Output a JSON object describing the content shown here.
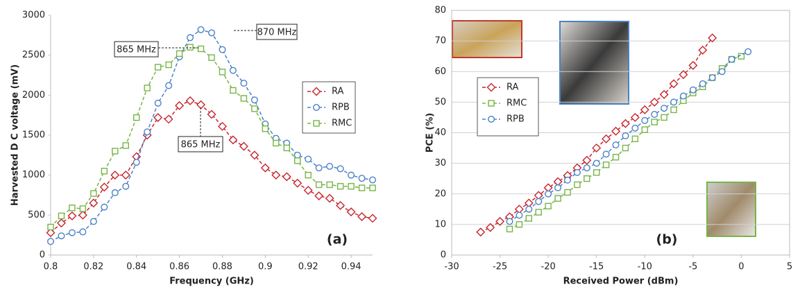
{
  "chart_data": [
    {
      "type": "line",
      "x_label": "Frequency (GHz)",
      "y_label": "Harvested D C voltage (mV)",
      "x": [
        0.8,
        0.805,
        0.81,
        0.815,
        0.82,
        0.825,
        0.83,
        0.835,
        0.84,
        0.845,
        0.85,
        0.855,
        0.86,
        0.865,
        0.87,
        0.875,
        0.88,
        0.885,
        0.89,
        0.895,
        0.9,
        0.905,
        0.91,
        0.915,
        0.92,
        0.925,
        0.93,
        0.935,
        0.94,
        0.945,
        0.95
      ],
      "xlim": [
        0.8,
        0.95
      ],
      "xticks": [
        0.8,
        0.82,
        0.84,
        0.86,
        0.88,
        0.9,
        0.92,
        0.94
      ],
      "ylim": [
        0,
        3000
      ],
      "yticks": [
        0,
        500,
        1000,
        1500,
        2000,
        2500,
        3000
      ],
      "grid": false,
      "series": [
        {
          "name": "RA",
          "color": "#c8242c",
          "marker": "diamond",
          "values": [
            280,
            400,
            490,
            500,
            650,
            850,
            1000,
            1000,
            1230,
            1500,
            1720,
            1700,
            1870,
            1930,
            1880,
            1760,
            1610,
            1440,
            1360,
            1250,
            1090,
            1000,
            980,
            900,
            810,
            740,
            710,
            620,
            540,
            480,
            460
          ]
        },
        {
          "name": "RPB",
          "color": "#4a80c8",
          "marker": "circle",
          "values": [
            170,
            240,
            280,
            290,
            420,
            600,
            780,
            860,
            1160,
            1540,
            1900,
            2120,
            2480,
            2720,
            2820,
            2780,
            2570,
            2310,
            2150,
            1940,
            1640,
            1460,
            1400,
            1250,
            1200,
            1090,
            1110,
            1080,
            1000,
            960,
            940
          ]
        },
        {
          "name": "RMC",
          "color": "#76b446",
          "marker": "square",
          "values": [
            350,
            490,
            590,
            580,
            770,
            1050,
            1300,
            1370,
            1720,
            2090,
            2350,
            2380,
            2520,
            2600,
            2580,
            2470,
            2290,
            2060,
            1960,
            1830,
            1580,
            1400,
            1340,
            1180,
            1000,
            880,
            880,
            860,
            860,
            840,
            840
          ]
        }
      ],
      "annotations": [
        "870 MHz",
        "865 MHz",
        "865 MHz"
      ],
      "panel_label": "(a)"
    },
    {
      "type": "line",
      "x_label": "Received Power (dBm)",
      "y_label": "PCE (%)",
      "xlim": [
        -30,
        5
      ],
      "xticks": [
        -30,
        -25,
        -20,
        -15,
        -10,
        -5,
        0,
        5
      ],
      "ylim": [
        0,
        80
      ],
      "yticks": [
        0,
        10,
        20,
        30,
        40,
        50,
        60,
        70,
        80
      ],
      "grid": true,
      "series": [
        {
          "name": "RA",
          "color": "#c8242c",
          "marker": "diamond",
          "x": [
            -27,
            -26,
            -25,
            -24,
            -23,
            -22,
            -21,
            -20,
            -19,
            -18,
            -17,
            -16,
            -15,
            -14,
            -13,
            -12,
            -11,
            -10,
            -9,
            -8,
            -7,
            -6,
            -5,
            -4,
            -3
          ],
          "values": [
            7.5,
            9,
            11,
            12.5,
            15,
            17,
            19.5,
            22,
            24,
            26,
            28.5,
            31,
            35,
            38,
            40.5,
            43,
            45,
            47.5,
            50,
            52.5,
            56,
            59,
            62,
            67,
            71
          ]
        },
        {
          "name": "RMC",
          "color": "#76b446",
          "marker": "square",
          "x": [
            -24,
            -23,
            -22,
            -21,
            -20,
            -19,
            -18,
            -17,
            -16,
            -15,
            -14,
            -13,
            -12,
            -11,
            -10,
            -9,
            -8,
            -7,
            -6,
            -5,
            -4,
            -3,
            -2,
            -1,
            0
          ],
          "values": [
            8.5,
            10,
            12,
            14,
            16,
            18.5,
            20.5,
            23,
            25,
            27,
            29.5,
            32,
            35,
            38,
            41,
            43.5,
            45,
            47.5,
            50.5,
            53,
            55,
            58,
            61,
            64,
            65
          ]
        },
        {
          "name": "RPB",
          "color": "#4a80c8",
          "marker": "circle",
          "x": [
            -24,
            -23,
            -22,
            -21,
            -20,
            -19,
            -18,
            -17,
            -16,
            -15,
            -14,
            -13,
            -12,
            -11,
            -10,
            -9,
            -8,
            -7,
            -6,
            -5,
            -4,
            -3,
            -2,
            -1,
            0.7
          ],
          "values": [
            11,
            13,
            15,
            17.5,
            20,
            22,
            24.5,
            27,
            28.5,
            30,
            33,
            36,
            39,
            41.5,
            44,
            46,
            48,
            50,
            52,
            54,
            56,
            58,
            60,
            64,
            66.5
          ]
        }
      ],
      "panel_label": "(b)"
    }
  ]
}
